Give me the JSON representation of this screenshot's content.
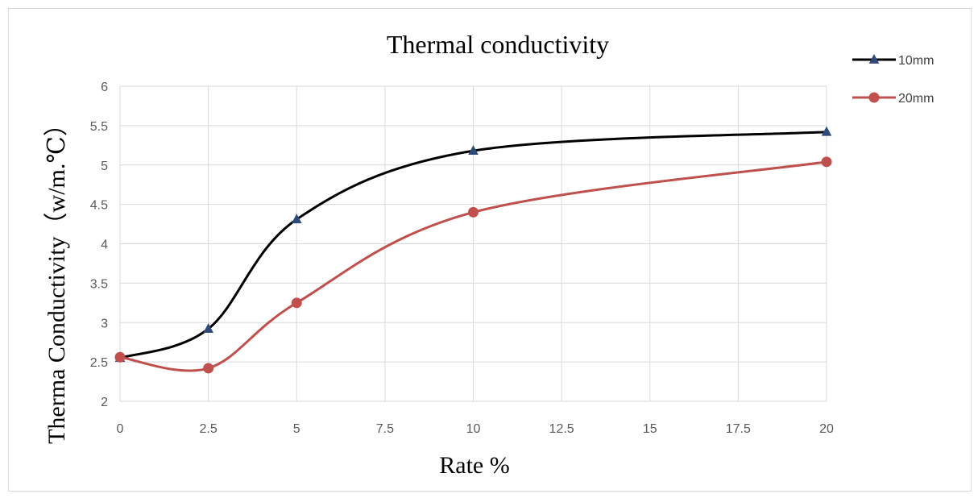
{
  "chart_data": {
    "type": "line",
    "title": "Thermal conductivity",
    "xlabel": "Rate %",
    "ylabel": "Therma Conductivity（w/m.℃）",
    "x": [
      0,
      2.5,
      5,
      10,
      20
    ],
    "xlim": [
      0,
      20
    ],
    "ylim": [
      2,
      6
    ],
    "xticks": [
      "0",
      "2.5",
      "5",
      "7.5",
      "10",
      "12.5",
      "15",
      "17.5",
      "20"
    ],
    "yticks": [
      "2",
      "2.5",
      "3",
      "3.5",
      "4",
      "4.5",
      "5",
      "5.5",
      "6"
    ],
    "grid": true,
    "legend_position": "top-right",
    "series": [
      {
        "name": "10mm",
        "values": [
          2.55,
          2.92,
          4.31,
          5.18,
          5.42
        ],
        "color": "#000000",
        "marker": "triangle",
        "marker_color": "#2e4a78"
      },
      {
        "name": "20mm",
        "values": [
          2.56,
          2.42,
          3.25,
          4.4,
          5.04
        ],
        "color": "#c0504d",
        "marker": "circle",
        "marker_color": "#c0504d"
      }
    ]
  }
}
